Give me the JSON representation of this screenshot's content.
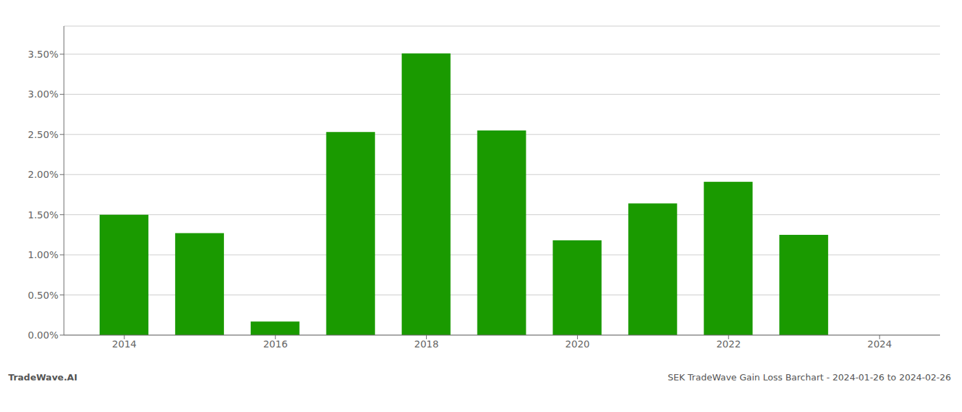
{
  "chart_data": {
    "type": "bar",
    "title": "SEK TradeWave Gain Loss Barchart - 2024-01-26 to 2024-02-26",
    "annotations": [
      "TradeWave.AI"
    ],
    "x": [
      2014,
      2015,
      2016,
      2017,
      2018,
      2019,
      2020,
      2021,
      2022,
      2023,
      2024
    ],
    "values": [
      1.5,
      1.27,
      0.17,
      2.53,
      3.51,
      2.55,
      1.18,
      1.64,
      1.91,
      1.25,
      0.0
    ],
    "color": "#1a9a00",
    "xlim": [
      2013.2,
      2024.8
    ],
    "xticks": [
      2014,
      2016,
      2018,
      2020,
      2022,
      2024
    ],
    "ylim": [
      0,
      3.85
    ],
    "yticks": [
      {
        "value": 0.0,
        "label": "0.00%"
      },
      {
        "value": 0.5,
        "label": "0.50%"
      },
      {
        "value": 1.0,
        "label": "1.00%"
      },
      {
        "value": 1.5,
        "label": "1.50%"
      },
      {
        "value": 2.0,
        "label": "2.00%"
      },
      {
        "value": 2.5,
        "label": "2.50%"
      },
      {
        "value": 3.0,
        "label": "3.00%"
      },
      {
        "value": 3.5,
        "label": "3.50%"
      }
    ],
    "grid": true
  }
}
